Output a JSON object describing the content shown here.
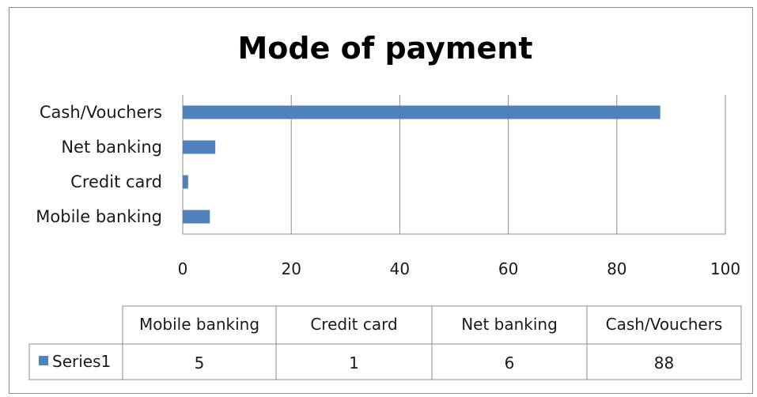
{
  "chart_data": {
    "type": "bar",
    "orientation": "horizontal",
    "title": "Mode of payment",
    "xlabel": "",
    "ylabel": "",
    "categories": [
      "Mobile banking",
      "Credit card",
      "Net banking",
      "Cash/Vouchers"
    ],
    "series": [
      {
        "name": "Series1",
        "values": [
          5,
          1,
          6,
          88
        ],
        "color": "#4f81bd"
      }
    ],
    "xlim": [
      0,
      100
    ],
    "ticks": [
      "0",
      "20",
      "40",
      "60",
      "80",
      "100"
    ],
    "grid": true,
    "legend": "data-table",
    "data_table": {
      "headers": [
        "Mobile banking",
        "Credit card",
        "Net banking",
        "Cash/Vouchers"
      ],
      "row_label": "Series1",
      "values": [
        "5",
        "1",
        "6",
        "88"
      ]
    }
  }
}
